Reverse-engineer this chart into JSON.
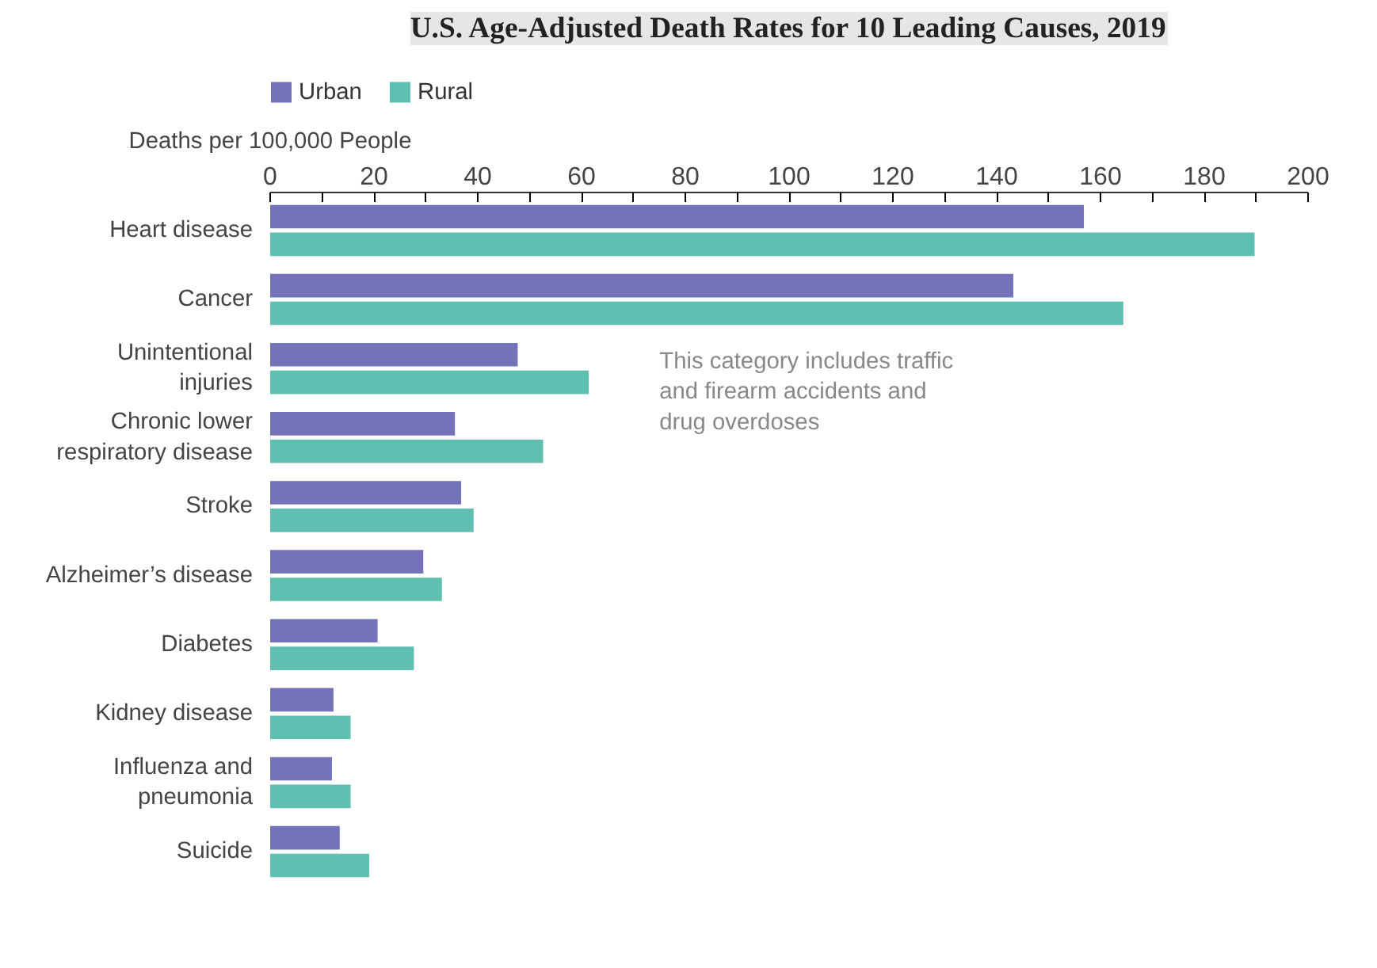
{
  "chart_data": {
    "type": "bar",
    "orientation": "horizontal",
    "title": "U.S. Age-Adjusted Death Rates for 10 Leading Causes, 2019",
    "xlabel": "Deaths per 100,000 People",
    "categories": [
      "Heart disease",
      "Cancer",
      "Unintentional\ninjuries",
      "Chronic lower\nrespiratory disease",
      "Stroke",
      "Alzheimer’s disease",
      "Diabetes",
      "Kidney disease",
      "Influenza and\npneumonia",
      "Suicide"
    ],
    "series": [
      {
        "name": "Urban",
        "color": "#7472b8",
        "values": [
          156.8,
          143.2,
          47.7,
          35.6,
          36.8,
          29.5,
          20.7,
          12.2,
          11.9,
          13.4
        ]
      },
      {
        "name": "Rural",
        "color": "#5fbfb0",
        "values": [
          189.7,
          164.4,
          61.4,
          52.6,
          39.2,
          33.1,
          27.7,
          15.5,
          15.5,
          19.1
        ]
      }
    ],
    "xlim": [
      0,
      200
    ],
    "xticks": [
      0,
      {
        "value": 10,
        "label": null
      },
      20,
      {
        "value": 30,
        "label": null
      },
      40,
      {
        "value": 50,
        "label": null
      },
      60,
      {
        "value": 70,
        "label": null
      },
      80,
      {
        "value": 90,
        "label": null
      },
      100,
      {
        "value": 110,
        "label": null
      },
      120,
      {
        "value": 130,
        "label": null
      },
      140,
      {
        "value": 150,
        "label": null
      },
      160,
      {
        "value": 170,
        "label": null
      },
      180,
      {
        "value": 190,
        "label": null
      },
      200
    ],
    "grid": false,
    "legend": "top left",
    "annotations": [
      "This category includes traffic\nand firearm accidents and\ndrug overdoses"
    ]
  }
}
